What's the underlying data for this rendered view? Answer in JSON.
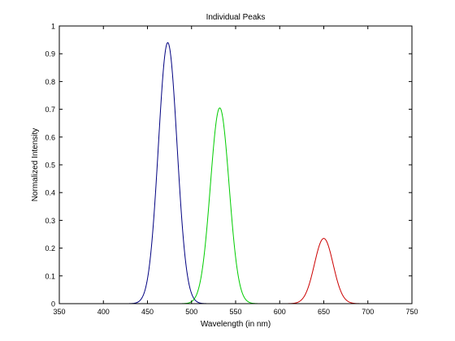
{
  "chart_data": {
    "type": "line",
    "title": "Individual Peaks",
    "xlabel": "Wavelength (in nm)",
    "ylabel": "Normalized Intensity",
    "xlim": [
      350,
      750
    ],
    "ylim": [
      0,
      1
    ],
    "xticks": [
      "350",
      "400",
      "450",
      "500",
      "550",
      "600",
      "650",
      "700",
      "750"
    ],
    "yticks": [
      "0",
      "0.1",
      "0.2",
      "0.3",
      "0.4",
      "0.5",
      "0.6",
      "0.7",
      "0.8",
      "0.9",
      "1"
    ],
    "grid": false,
    "legend": "none",
    "series": [
      {
        "color": "#000080",
        "peak_x": 473,
        "peak_y": 0.94,
        "sigma": 10.6,
        "x_start": 380,
        "x_end": 738
      },
      {
        "color": "#00cc00",
        "peak_x": 532,
        "peak_y": 0.705,
        "sigma": 10.6,
        "x_start": 380,
        "x_end": 738
      },
      {
        "color": "#cc0000",
        "peak_x": 650,
        "peak_y": 0.235,
        "sigma": 10.6,
        "x_start": 380,
        "x_end": 738
      }
    ]
  }
}
